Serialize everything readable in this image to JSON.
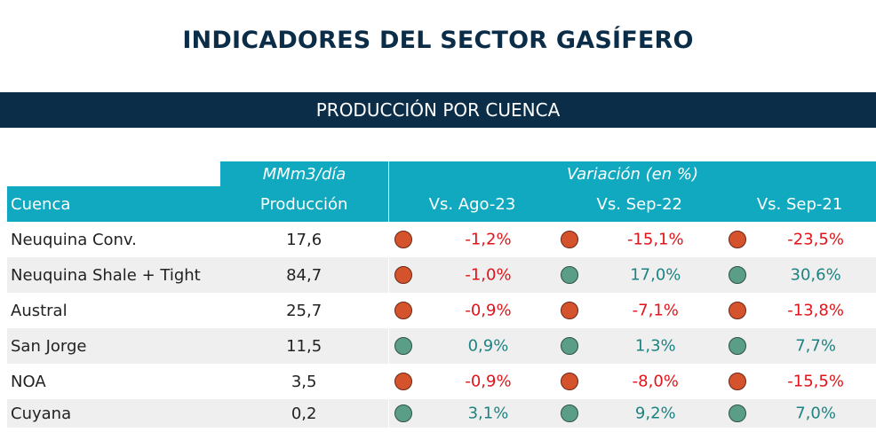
{
  "title": "INDICADORES DEL SECTOR GASÍFERO",
  "banner": "PRODUCCIÓN POR CUENCA",
  "header": {
    "unit": "MMm3/día",
    "variation": "Variación (en %)",
    "col_cuenca": "Cuenca",
    "col_produccion": "Producción",
    "vs": [
      "Vs. Ago-23",
      "Vs. Sep-22",
      "Vs. Sep-21"
    ]
  },
  "indicator_colors": {
    "negative": "#d4532c",
    "positive": "#5a9e87"
  },
  "rows": [
    {
      "cuenca": "Neuquina Conv.",
      "produccion": "17,6",
      "v": [
        {
          "text": "-1,2%",
          "sign": "neg"
        },
        {
          "text": "-15,1%",
          "sign": "neg"
        },
        {
          "text": "-23,5%",
          "sign": "neg"
        }
      ]
    },
    {
      "cuenca": "Neuquina Shale + Tight",
      "produccion": "84,7",
      "v": [
        {
          "text": "-1,0%",
          "sign": "neg"
        },
        {
          "text": "17,0%",
          "sign": "pos"
        },
        {
          "text": "30,6%",
          "sign": "pos"
        }
      ]
    },
    {
      "cuenca": "Austral",
      "produccion": "25,7",
      "v": [
        {
          "text": "-0,9%",
          "sign": "neg"
        },
        {
          "text": "-7,1%",
          "sign": "neg"
        },
        {
          "text": "-13,8%",
          "sign": "neg"
        }
      ]
    },
    {
      "cuenca": "San Jorge",
      "produccion": "11,5",
      "v": [
        {
          "text": "0,9%",
          "sign": "pos"
        },
        {
          "text": "1,3%",
          "sign": "pos"
        },
        {
          "text": "7,7%",
          "sign": "pos"
        }
      ]
    },
    {
      "cuenca": "NOA",
      "produccion": "3,5",
      "v": [
        {
          "text": "-0,9%",
          "sign": "neg"
        },
        {
          "text": "-8,0%",
          "sign": "neg"
        },
        {
          "text": "-15,5%",
          "sign": "neg"
        }
      ]
    },
    {
      "cuenca": "Cuyana",
      "produccion": "0,2",
      "v": [
        {
          "text": "3,1%",
          "sign": "pos"
        },
        {
          "text": "9,2%",
          "sign": "pos"
        },
        {
          "text": "7,0%",
          "sign": "pos"
        }
      ]
    }
  ]
}
